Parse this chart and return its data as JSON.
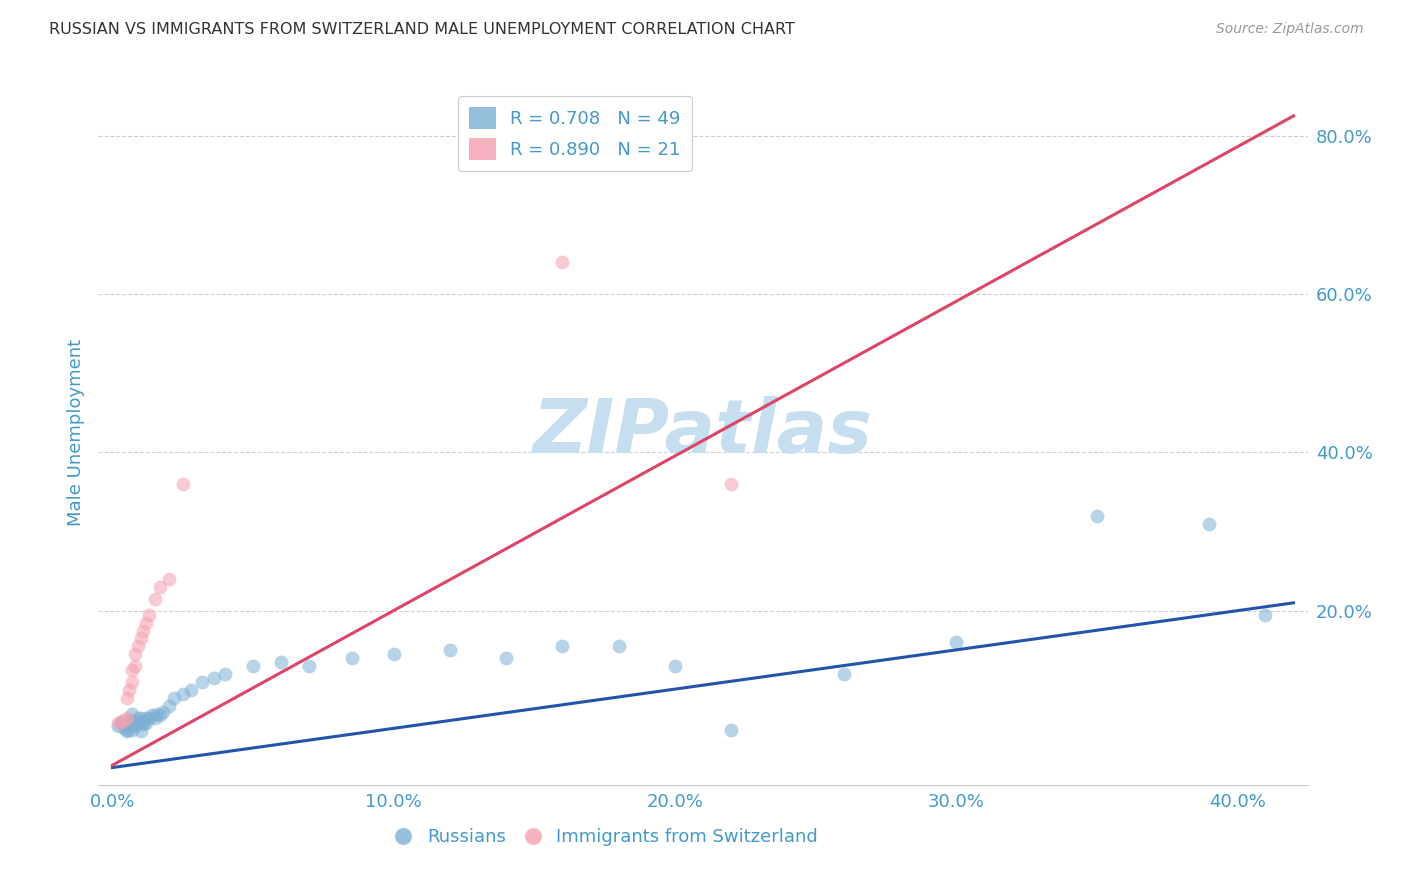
{
  "title": "RUSSIAN VS IMMIGRANTS FROM SWITZERLAND MALE UNEMPLOYMENT CORRELATION CHART",
  "source": "Source: ZipAtlas.com",
  "ylabel": "Male Unemployment",
  "x_tick_labels": [
    "0.0%",
    "10.0%",
    "20.0%",
    "30.0%",
    "40.0%"
  ],
  "x_tick_values": [
    0.0,
    0.1,
    0.2,
    0.3,
    0.4
  ],
  "y_tick_labels": [
    "20.0%",
    "40.0%",
    "60.0%",
    "80.0%"
  ],
  "y_tick_values": [
    0.2,
    0.4,
    0.6,
    0.8
  ],
  "xlim": [
    -0.005,
    0.425
  ],
  "ylim": [
    -0.02,
    0.87
  ],
  "blue_color": "#7bafd4",
  "pink_color": "#f4a0b0",
  "blue_line_color": "#2255aa",
  "pink_line_color": "#dd4466",
  "watermark": "ZIPatlas",
  "watermark_color": "#c5dff0",
  "background_color": "#ffffff",
  "grid_color": "#cccccc",
  "axis_label_color": "#4499cc",
  "title_color": "#333333",
  "blue_scatter_x": [
    0.002,
    0.003,
    0.004,
    0.004,
    0.005,
    0.005,
    0.006,
    0.006,
    0.007,
    0.007,
    0.008,
    0.008,
    0.009,
    0.009,
    0.01,
    0.01,
    0.011,
    0.011,
    0.012,
    0.012,
    0.013,
    0.014,
    0.015,
    0.016,
    0.017,
    0.018,
    0.02,
    0.022,
    0.025,
    0.028,
    0.032,
    0.036,
    0.04,
    0.05,
    0.06,
    0.07,
    0.085,
    0.1,
    0.12,
    0.14,
    0.16,
    0.18,
    0.2,
    0.22,
    0.26,
    0.3,
    0.35,
    0.39,
    0.41
  ],
  "blue_scatter_y": [
    0.055,
    0.06,
    0.058,
    0.052,
    0.05,
    0.048,
    0.062,
    0.057,
    0.05,
    0.07,
    0.055,
    0.06,
    0.065,
    0.058,
    0.065,
    0.048,
    0.06,
    0.057,
    0.058,
    0.065,
    0.065,
    0.068,
    0.065,
    0.07,
    0.068,
    0.072,
    0.08,
    0.09,
    0.095,
    0.1,
    0.11,
    0.115,
    0.12,
    0.13,
    0.135,
    0.13,
    0.14,
    0.145,
    0.15,
    0.14,
    0.155,
    0.155,
    0.13,
    0.05,
    0.12,
    0.16,
    0.32,
    0.31,
    0.195
  ],
  "pink_scatter_x": [
    0.002,
    0.003,
    0.004,
    0.005,
    0.005,
    0.006,
    0.007,
    0.007,
    0.008,
    0.008,
    0.009,
    0.01,
    0.011,
    0.012,
    0.013,
    0.015,
    0.017,
    0.02,
    0.025,
    0.16,
    0.22
  ],
  "pink_scatter_y": [
    0.058,
    0.06,
    0.062,
    0.065,
    0.09,
    0.1,
    0.11,
    0.125,
    0.13,
    0.145,
    0.155,
    0.165,
    0.175,
    0.185,
    0.195,
    0.215,
    0.23,
    0.24,
    0.36,
    0.64,
    0.36
  ],
  "blue_line_x": [
    0.0,
    0.42
  ],
  "blue_line_y": [
    0.002,
    0.21
  ],
  "pink_line_x": [
    0.0,
    0.42
  ],
  "pink_line_y": [
    0.005,
    0.825
  ],
  "marker_size": 100,
  "marker_alpha": 0.55,
  "line_width": 2.2
}
